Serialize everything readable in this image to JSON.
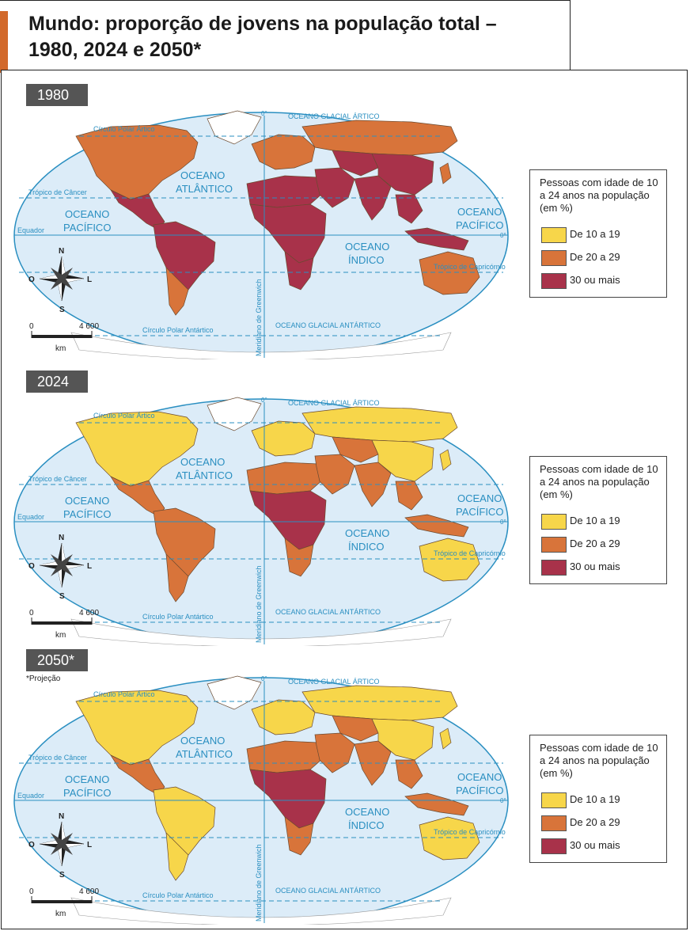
{
  "title": {
    "line1": "Mundo: proporção de jovens na população total –",
    "line2": "1980, 2024 e 2050*"
  },
  "colors": {
    "ocean": "#dcecf8",
    "ocean_border": "#2a8fc1",
    "class_10_19": "#f7d64a",
    "class_20_29": "#d8743a",
    "class_30_plus": "#a8324a"
  },
  "legend": {
    "title": "Pessoas com idade de 10 a 24 anos na população (em %)",
    "items": [
      {
        "label": "De 10 a 19",
        "color": "#f7d64a"
      },
      {
        "label": "De 20 a 29",
        "color": "#d8743a"
      },
      {
        "label": "30 ou mais",
        "color": "#a8324a"
      }
    ]
  },
  "map_labels": {
    "arctic_ocean": "OCEANO GLACIAL ÁRTICO",
    "antarctic_ocean": "OCEANO GLACIAL ANTÁRTICO",
    "atlantic_1": "OCEANO",
    "atlantic_2": "ATLÂNTICO",
    "pacific_1": "OCEANO",
    "pacific_2": "PACÍFICO",
    "indian_1": "OCEANO",
    "indian_2": "ÍNDICO",
    "arctic_circle": "Círculo Polar Ártico",
    "antarctic_circle": "Círculo Polar Antártico",
    "tropic_cancer": "Trópico de Câncer",
    "tropic_capricorn": "Trópico de Capricórnio",
    "equator": "Equador",
    "greenwich": "Meridiano de Greenwich",
    "zero_deg": "0°"
  },
  "compass": {
    "n": "N",
    "s": "S",
    "l": "L",
    "o": "O"
  },
  "scale": {
    "start": "0",
    "end": "4 600",
    "unit": "km"
  },
  "panels": [
    {
      "year": "1980",
      "note": "",
      "regions": {
        "north_america": "#d8743a",
        "greenland": "#ffffff",
        "central_america": "#a8324a",
        "south_america": "#a8324a",
        "southern_cone": "#d8743a",
        "europe": "#d8743a",
        "russia": "#d8743a",
        "north_africa": "#a8324a",
        "subsaharan_africa": "#a8324a",
        "southern_africa": "#a8324a",
        "middle_east": "#a8324a",
        "central_asia": "#a8324a",
        "south_asia": "#a8324a",
        "china": "#a8324a",
        "southeast_asia": "#a8324a",
        "japan": "#d8743a",
        "indonesia": "#a8324a",
        "australia": "#d8743a"
      }
    },
    {
      "year": "2024",
      "note": "",
      "regions": {
        "north_america": "#f7d64a",
        "greenland": "#ffffff",
        "central_america": "#d8743a",
        "south_america": "#d8743a",
        "southern_cone": "#d8743a",
        "europe": "#f7d64a",
        "russia": "#f7d64a",
        "north_africa": "#d8743a",
        "subsaharan_africa": "#a8324a",
        "southern_africa": "#d8743a",
        "middle_east": "#d8743a",
        "central_asia": "#d8743a",
        "south_asia": "#d8743a",
        "china": "#f7d64a",
        "southeast_asia": "#d8743a",
        "japan": "#f7d64a",
        "indonesia": "#d8743a",
        "australia": "#f7d64a"
      }
    },
    {
      "year": "2050*",
      "note": "*Projeção",
      "regions": {
        "north_america": "#f7d64a",
        "greenland": "#ffffff",
        "central_america": "#d8743a",
        "south_america": "#f7d64a",
        "southern_cone": "#f7d64a",
        "europe": "#f7d64a",
        "russia": "#f7d64a",
        "north_africa": "#d8743a",
        "subsaharan_africa": "#a8324a",
        "southern_africa": "#d8743a",
        "middle_east": "#d8743a",
        "central_asia": "#d8743a",
        "south_asia": "#d8743a",
        "china": "#f7d64a",
        "southeast_asia": "#d8743a",
        "japan": "#f7d64a",
        "indonesia": "#d8743a",
        "australia": "#f7d64a"
      }
    }
  ]
}
